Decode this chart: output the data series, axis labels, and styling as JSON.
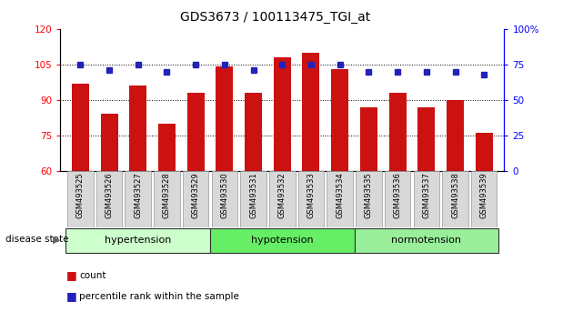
{
  "title": "GDS3673 / 100113475_TGI_at",
  "samples": [
    "GSM493525",
    "GSM493526",
    "GSM493527",
    "GSM493528",
    "GSM493529",
    "GSM493530",
    "GSM493531",
    "GSM493532",
    "GSM493533",
    "GSM493534",
    "GSM493535",
    "GSM493536",
    "GSM493537",
    "GSM493538",
    "GSM493539"
  ],
  "count_values": [
    97,
    84,
    96,
    80,
    93,
    104,
    93,
    108,
    110,
    103,
    87,
    93,
    87,
    90,
    76
  ],
  "percentile_values": [
    75,
    71,
    75,
    70,
    75,
    75,
    71,
    75,
    75,
    75,
    70,
    70,
    70,
    70,
    68
  ],
  "groups": [
    {
      "label": "hypertension",
      "start": 0,
      "end": 5
    },
    {
      "label": "hypotension",
      "start": 5,
      "end": 10
    },
    {
      "label": "normotension",
      "start": 10,
      "end": 15
    }
  ],
  "group_colors": [
    "#ccffcc",
    "#66ee66",
    "#99ee99"
  ],
  "bar_color": "#cc1111",
  "dot_color": "#2222bb",
  "ylim_left": [
    60,
    120
  ],
  "ylim_right": [
    0,
    100
  ],
  "yticks_left": [
    60,
    75,
    90,
    105,
    120
  ],
  "yticks_right": [
    0,
    25,
    50,
    75,
    100
  ],
  "ytick_right_labels": [
    "0",
    "25",
    "50",
    "75",
    "100%"
  ],
  "grid_values": [
    75,
    90,
    105
  ]
}
